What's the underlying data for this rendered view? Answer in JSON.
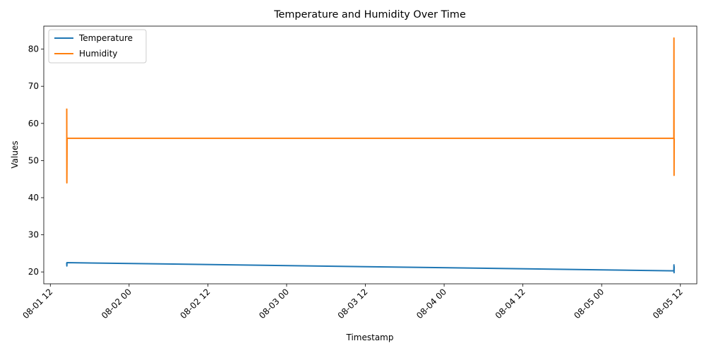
{
  "chart_data": {
    "type": "line",
    "title": "Temperature and Humidity Over Time",
    "xlabel": "Timestamp",
    "ylabel": "Values",
    "x_ticks": [
      "08-01 12",
      "08-02 00",
      "08-02 12",
      "08-03 00",
      "08-03 12",
      "08-04 00",
      "08-04 12",
      "08-05 00",
      "08-05 12"
    ],
    "xlim": [
      "2024-08-01 11:00",
      "2024-08-05 14:30"
    ],
    "y_ticks": [
      20,
      30,
      40,
      50,
      60,
      70,
      80
    ],
    "ylim": [
      16.8,
      86.2
    ],
    "legend_position": "top-left",
    "series": [
      {
        "name": "Temperature",
        "color": "#1f77b4",
        "points": [
          [
            "2024-08-01 14:30",
            22.5
          ],
          [
            "2024-08-01 14:31",
            21.6
          ],
          [
            "2024-08-01 14:32",
            22.5
          ],
          [
            "2024-08-05 11:00",
            20.3
          ],
          [
            "2024-08-05 11:01",
            21.9
          ],
          [
            "2024-08-05 11:02",
            19.8
          ],
          [
            "2024-08-05 11:03",
            21.5
          ]
        ]
      },
      {
        "name": "Humidity",
        "color": "#ff7f0e",
        "points": [
          [
            "2024-08-01 14:30",
            64
          ],
          [
            "2024-08-01 14:31",
            44
          ],
          [
            "2024-08-01 14:32",
            49
          ],
          [
            "2024-08-01 14:33",
            56
          ],
          [
            "2024-08-05 11:00",
            56
          ],
          [
            "2024-08-05 11:01",
            83
          ],
          [
            "2024-08-05 11:02",
            46
          ],
          [
            "2024-08-05 11:03",
            56
          ]
        ]
      }
    ]
  }
}
